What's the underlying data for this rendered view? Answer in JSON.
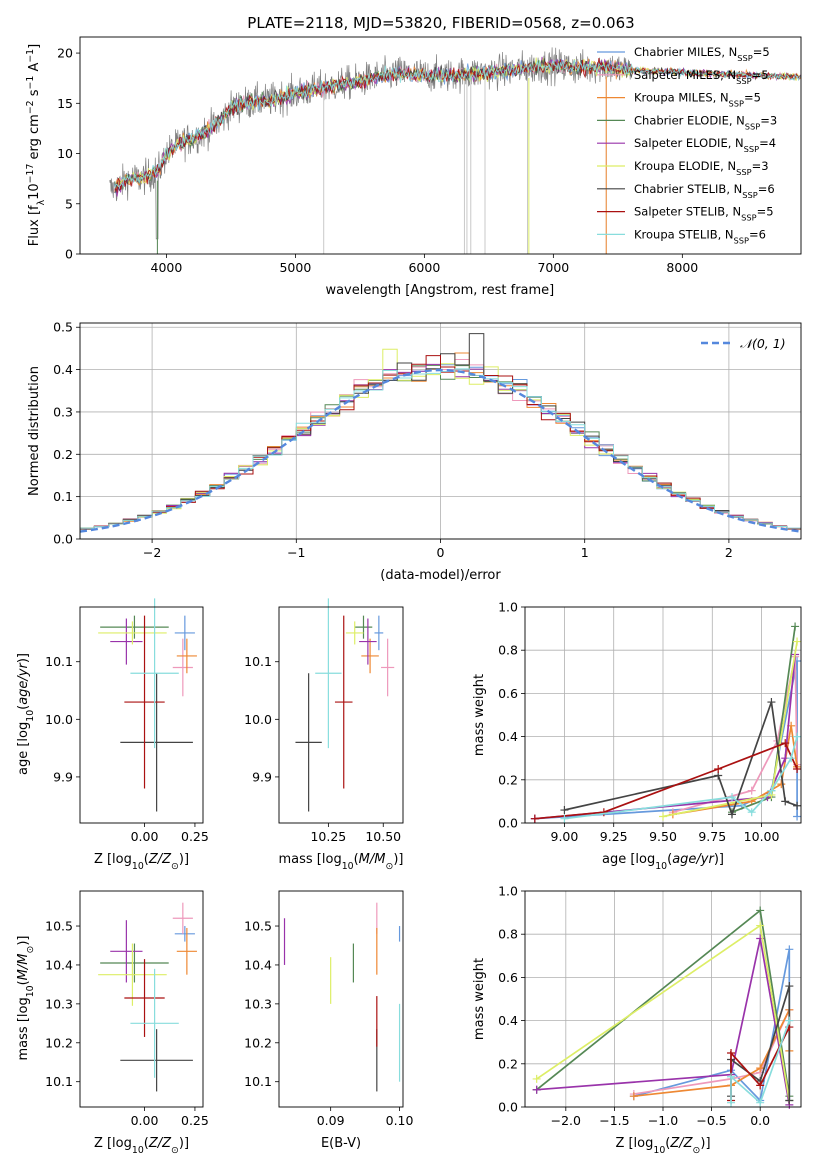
{
  "figure": {
    "title": "PLATE=2118, MJD=53820, FIBERID=0568, z=0.063"
  },
  "colors": {
    "data": "#7f7f7f",
    "normal": "#5588dd",
    "grid": "#b0b0b0"
  },
  "chart_data": [
    {
      "id": "spectrum",
      "type": "line",
      "title": "PLATE=2118, MJD=53820, FIBERID=0568, z=0.063",
      "xlabel": "wavelength [Angstrom, rest frame]",
      "ylabel": "Flux [fλ10⁻¹⁷ erg cm⁻² s⁻¹ A⁻¹]",
      "xlim": [
        3330,
        8920
      ],
      "ylim": [
        0,
        21.6
      ],
      "xticks": [
        4000,
        5000,
        6000,
        7000,
        8000
      ],
      "yticks": [
        0,
        5,
        10,
        15,
        20
      ],
      "grid": false,
      "legend_position": "right",
      "continuum": {
        "x": [
          3600,
          3700,
          3800,
          3900,
          3950,
          4000,
          4100,
          4200,
          4300,
          4400,
          4500,
          4600,
          4800,
          5000,
          5200,
          5400,
          5600,
          5800,
          6000,
          6200,
          6400,
          6600,
          6800,
          7000,
          7200,
          7400,
          7500,
          7600
        ],
        "y": [
          6.5,
          7.5,
          7.5,
          8.0,
          8.5,
          10.0,
          11.0,
          11.5,
          12.2,
          13.0,
          14.5,
          15.0,
          15.3,
          16.0,
          16.5,
          17.0,
          17.5,
          18.0,
          17.8,
          17.8,
          18.0,
          18.2,
          18.5,
          18.8,
          18.5,
          18.7,
          18.4,
          18.3
        ]
      },
      "observed_extent": [
        3560,
        7600
      ],
      "model_extent": [
        3600,
        8920
      ],
      "line_tail": {
        "x": [
          7600,
          8920
        ],
        "y": [
          18.3,
          17.6
        ]
      },
      "series": [
        {
          "name": "Chabrier MILES, N_SSP=5",
          "color": "#6699dd"
        },
        {
          "name": "Salpeter MILES, N_SSP=5",
          "color": "#ee99bb"
        },
        {
          "name": "Kroupa MILES, N_SSP=5",
          "color": "#ee8833"
        },
        {
          "name": "Chabrier ELODIE, N_SSP=3",
          "color": "#558855"
        },
        {
          "name": "Salpeter ELODIE, N_SSP=4",
          "color": "#9933aa"
        },
        {
          "name": "Kroupa ELODIE, N_SSP=3",
          "color": "#ddee66"
        },
        {
          "name": "Chabrier STELIB, N_SSP=6",
          "color": "#444444"
        },
        {
          "name": "Salpeter STELIB, N_SSP=5",
          "color": "#aa1111"
        },
        {
          "name": "Kroupa STELIB, N_SSP=6",
          "color": "#88dddd"
        }
      ]
    },
    {
      "id": "residuals",
      "type": "histogram",
      "xlabel": "(data-model)/error",
      "ylabel": "Normed distribution",
      "xlim": [
        -2.5,
        2.5
      ],
      "ylim": [
        0,
        0.51
      ],
      "xticks": [
        -2,
        -1,
        0,
        1,
        2
      ],
      "xtick_labels": [
        "−2",
        "−1",
        "0",
        "1",
        "2"
      ],
      "yticks": [
        0.0,
        0.1,
        0.2,
        0.3,
        0.4,
        0.5
      ],
      "ytick_labels": [
        "0.0",
        "0.1",
        "0.2",
        "0.3",
        "0.4",
        "0.5"
      ],
      "grid": true,
      "legend_label": "𝒩(0, 1)",
      "legend_position": "upper right",
      "bin_width": 0.1
    },
    {
      "id": "age-vs-Z",
      "type": "scatter",
      "xlabel": "Z [log10(Z/Z⊙)]",
      "ylabel": "age  [log10(age/yr)]",
      "xlim": [
        -0.32,
        0.29
      ],
      "ylim": [
        9.82,
        10.195
      ],
      "xticks": [
        0.0,
        0.25
      ],
      "xtick_labels": [
        "0.00",
        "0.25"
      ],
      "yticks": [
        9.9,
        10.0,
        10.1
      ],
      "ytick_labels": [
        "9.9",
        "10.0",
        "10.1"
      ],
      "points": [
        {
          "x": 0.2,
          "y": 10.15,
          "xerr": 0.05,
          "yerr": 0.03,
          "color": "#6699dd"
        },
        {
          "x": 0.19,
          "y": 10.09,
          "xerr": 0.05,
          "yerr": 0.05,
          "color": "#ee99bb"
        },
        {
          "x": 0.21,
          "y": 10.11,
          "xerr": 0.05,
          "yerr": 0.03,
          "color": "#ee8833"
        },
        {
          "x": -0.05,
          "y": 10.16,
          "xerr": 0.17,
          "yerr": 0.02,
          "color": "#558855"
        },
        {
          "x": -0.09,
          "y": 10.135,
          "xerr": 0.08,
          "yerr": 0.04,
          "color": "#9933aa"
        },
        {
          "x": -0.06,
          "y": 10.15,
          "xerr": 0.17,
          "yerr": 0.02,
          "color": "#ddee66"
        },
        {
          "x": 0.06,
          "y": 9.96,
          "xerr": 0.18,
          "yerr": 0.12,
          "color": "#444444"
        },
        {
          "x": 0.0,
          "y": 10.03,
          "xerr": 0.1,
          "yerr": 0.15,
          "color": "#aa1111"
        },
        {
          "x": 0.05,
          "y": 10.08,
          "xerr": 0.12,
          "yerr": 0.13,
          "color": "#88dddd"
        }
      ]
    },
    {
      "id": "age-vs-mass",
      "type": "scatter",
      "xlabel": "mass [log10(M/M⊙)]",
      "ylabel": "",
      "xlim": [
        10.025,
        10.59
      ],
      "ylim": [
        9.82,
        10.195
      ],
      "xticks": [
        10.25,
        10.5
      ],
      "xtick_labels": [
        "10.25",
        "10.50"
      ],
      "yticks": [
        9.9,
        10.0,
        10.1
      ],
      "ytick_labels": [
        "9.9",
        "10.0",
        "10.1"
      ],
      "points": [
        {
          "x": 10.48,
          "y": 10.15,
          "xerr": 0.02,
          "yerr": 0.03,
          "color": "#6699dd"
        },
        {
          "x": 10.52,
          "y": 10.09,
          "xerr": 0.03,
          "yerr": 0.05,
          "color": "#ee99bb"
        },
        {
          "x": 10.44,
          "y": 10.11,
          "xerr": 0.04,
          "yerr": 0.03,
          "color": "#ee8833"
        },
        {
          "x": 10.41,
          "y": 10.16,
          "xerr": 0.04,
          "yerr": 0.02,
          "color": "#558855"
        },
        {
          "x": 10.43,
          "y": 10.135,
          "xerr": 0.04,
          "yerr": 0.04,
          "color": "#9933aa"
        },
        {
          "x": 10.37,
          "y": 10.15,
          "xerr": 0.04,
          "yerr": 0.02,
          "color": "#ddee66"
        },
        {
          "x": 10.16,
          "y": 9.96,
          "xerr": 0.06,
          "yerr": 0.12,
          "color": "#444444"
        },
        {
          "x": 10.32,
          "y": 10.03,
          "xerr": 0.04,
          "yerr": 0.15,
          "color": "#aa1111"
        },
        {
          "x": 10.25,
          "y": 10.08,
          "xerr": 0.06,
          "yerr": 0.13,
          "color": "#88dddd"
        }
      ]
    },
    {
      "id": "mass-vs-Z",
      "type": "scatter",
      "xlabel": "Z [log10(Z/Z⊙)]",
      "ylabel": "mass [log10(M/M⊙)]",
      "xlim": [
        -0.32,
        0.29
      ],
      "ylim": [
        10.035,
        10.59
      ],
      "xticks": [
        0.0,
        0.25
      ],
      "xtick_labels": [
        "0.00",
        "0.25"
      ],
      "yticks": [
        10.1,
        10.2,
        10.3,
        10.4,
        10.5
      ],
      "ytick_labels": [
        "10.1",
        "10.2",
        "10.3",
        "10.4",
        "10.5"
      ],
      "points": [
        {
          "x": 0.2,
          "y": 10.48,
          "xerr": 0.05,
          "yerr": 0.02,
          "color": "#6699dd"
        },
        {
          "x": 0.19,
          "y": 10.52,
          "xerr": 0.05,
          "yerr": 0.04,
          "color": "#ee99bb"
        },
        {
          "x": 0.21,
          "y": 10.435,
          "xerr": 0.05,
          "yerr": 0.06,
          "color": "#ee8833"
        },
        {
          "x": -0.05,
          "y": 10.405,
          "xerr": 0.17,
          "yerr": 0.05,
          "color": "#558855"
        },
        {
          "x": -0.09,
          "y": 10.435,
          "xerr": 0.08,
          "yerr": 0.08,
          "color": "#9933aa"
        },
        {
          "x": -0.06,
          "y": 10.375,
          "xerr": 0.17,
          "yerr": 0.08,
          "color": "#ddee66"
        },
        {
          "x": 0.06,
          "y": 10.155,
          "xerr": 0.18,
          "yerr": 0.08,
          "color": "#444444"
        },
        {
          "x": 0.0,
          "y": 10.315,
          "xerr": 0.1,
          "yerr": 0.1,
          "color": "#aa1111"
        },
        {
          "x": 0.05,
          "y": 10.25,
          "xerr": 0.12,
          "yerr": 0.14,
          "color": "#88dddd"
        }
      ]
    },
    {
      "id": "mass-vs-EBV",
      "type": "scatter",
      "xlabel": "E(B-V)",
      "ylabel": "",
      "xlim": [
        0.0825,
        0.1005
      ],
      "ylim": [
        10.035,
        10.59
      ],
      "xticks": [
        0.09,
        0.1
      ],
      "xtick_labels": [
        "0.09",
        "0.10"
      ],
      "yticks": [
        10.1,
        10.2,
        10.3,
        10.4,
        10.5
      ],
      "ytick_labels": [
        "10.1",
        "10.2",
        "10.3",
        "10.4",
        "10.5"
      ],
      "points": [
        {
          "x": 0.1,
          "y": 10.48,
          "xerr": 0,
          "yerr": 0.02,
          "color": "#6699dd"
        },
        {
          "x": 0.0967,
          "y": 10.52,
          "xerr": 0,
          "yerr": 0.04,
          "color": "#ee99bb"
        },
        {
          "x": 0.0967,
          "y": 10.435,
          "xerr": 0,
          "yerr": 0.06,
          "color": "#ee8833"
        },
        {
          "x": 0.0933,
          "y": 10.405,
          "xerr": 0,
          "yerr": 0.05,
          "color": "#558855"
        },
        {
          "x": 0.0833,
          "y": 10.46,
          "xerr": 0,
          "yerr": 0.06,
          "color": "#9933aa"
        },
        {
          "x": 0.09,
          "y": 10.36,
          "xerr": 0,
          "yerr": 0.06,
          "color": "#ddee66"
        },
        {
          "x": 0.0967,
          "y": 10.155,
          "xerr": 0,
          "yerr": 0.08,
          "color": "#444444"
        },
        {
          "x": 0.0967,
          "y": 10.255,
          "xerr": 0,
          "yerr": 0.065,
          "color": "#aa1111"
        },
        {
          "x": 0.1,
          "y": 10.2,
          "xerr": 0,
          "yerr": 0.1,
          "color": "#88dddd"
        }
      ]
    },
    {
      "id": "mass-weight-vs-age",
      "type": "line",
      "xlabel": "age  [log10(age/yr)]",
      "ylabel": "mass weight",
      "xlim": [
        8.8,
        10.2
      ],
      "ylim": [
        0,
        1
      ],
      "xticks": [
        9.0,
        9.25,
        9.5,
        9.75,
        10.0
      ],
      "xtick_labels": [
        "9.00",
        "9.25",
        "9.50",
        "9.75",
        "10.00"
      ],
      "yticks": [
        0.0,
        0.2,
        0.4,
        0.6,
        0.8,
        1.0
      ],
      "ytick_labels": [
        "0.0",
        "0.2",
        "0.4",
        "0.6",
        "0.8",
        "1.0"
      ],
      "grid": true,
      "series": [
        {
          "name": "Chabrier MILES, N_SSP=5",
          "color": "#6699dd",
          "x": [
            8.85,
            9.9,
            10.05,
            10.18,
            10.18
          ],
          "y": [
            0.02,
            0.08,
            0.15,
            0.75,
            0.03
          ]
        },
        {
          "name": "Salpeter MILES, N_SSP=5",
          "color": "#ee99bb",
          "x": [
            9.55,
            9.95,
            10.08,
            10.17,
            10.18
          ],
          "y": [
            0.05,
            0.15,
            0.38,
            0.77,
            0.27
          ]
        },
        {
          "name": "Kroupa MILES, N_SSP=5",
          "color": "#ee8833",
          "x": [
            9.55,
            9.95,
            10.1,
            10.15,
            10.18
          ],
          "y": [
            0.04,
            0.1,
            0.18,
            0.45,
            0.26
          ]
        },
        {
          "name": "Chabrier ELODIE, N_SSP=3",
          "color": "#558855",
          "x": [
            9.85,
            10.05,
            10.17
          ],
          "y": [
            0.05,
            0.12,
            0.91
          ]
        },
        {
          "name": "Salpeter ELODIE, N_SSP=4",
          "color": "#9933aa",
          "x": [
            8.85,
            10.03,
            10.12,
            10.17
          ],
          "y": [
            0.02,
            0.12,
            0.3,
            0.78
          ]
        },
        {
          "name": "Kroupa ELODIE, N_SSP=3",
          "color": "#ddee66",
          "x": [
            9.5,
            10.05,
            10.18
          ],
          "y": [
            0.03,
            0.13,
            0.84
          ]
        },
        {
          "name": "Chabrier STELIB, N_SSP=6",
          "color": "#444444",
          "x": [
            9.0,
            9.78,
            9.85,
            10.05,
            10.12,
            10.18
          ],
          "y": [
            0.06,
            0.22,
            0.04,
            0.56,
            0.1,
            0.08
          ]
        },
        {
          "name": "Salpeter STELIB, N_SSP=5",
          "color": "#aa1111",
          "x": [
            8.85,
            9.2,
            9.78,
            10.12,
            10.18
          ],
          "y": [
            0.02,
            0.05,
            0.25,
            0.37,
            0.25
          ]
        },
        {
          "name": "Kroupa STELIB, N_SSP=6",
          "color": "#88dddd",
          "x": [
            9.0,
            9.85,
            9.95,
            10.05,
            10.15,
            10.18
          ],
          "y": [
            0.02,
            0.12,
            0.05,
            0.15,
            0.3,
            0.4
          ]
        }
      ]
    },
    {
      "id": "mass-weight-vs-Z",
      "type": "line",
      "xlabel": "Z [log10(Z/Z⊙)]",
      "ylabel": "mass weight",
      "xlim": [
        -2.42,
        0.42
      ],
      "ylim": [
        0,
        1
      ],
      "xticks": [
        -2.0,
        -1.5,
        -1.0,
        -0.5,
        0.0
      ],
      "xtick_labels": [
        "−2.0",
        "−1.5",
        "−1.0",
        "−0.5",
        "0.0"
      ],
      "yticks": [
        0.0,
        0.2,
        0.4,
        0.6,
        0.8,
        1.0
      ],
      "ytick_labels": [
        "0.0",
        "0.2",
        "0.4",
        "0.6",
        "0.8",
        "1.0"
      ],
      "grid": true,
      "series": [
        {
          "name": "Chabrier MILES, N_SSP=5",
          "color": "#6699dd",
          "x": [
            -1.3,
            -0.3,
            0.0,
            0.3,
            0.3
          ],
          "y": [
            0.05,
            0.17,
            0.03,
            0.73,
            0.03
          ]
        },
        {
          "name": "Salpeter MILES, N_SSP=5",
          "color": "#ee99bb",
          "x": [
            -1.3,
            -0.3,
            0.0,
            0.3
          ],
          "y": [
            0.06,
            0.13,
            0.16,
            0.45
          ]
        },
        {
          "name": "Kroupa MILES, N_SSP=5",
          "color": "#ee8833",
          "x": [
            -1.3,
            -0.3,
            0.0,
            0.3,
            0.3
          ],
          "y": [
            0.05,
            0.1,
            0.18,
            0.45,
            0.26
          ]
        },
        {
          "name": "Chabrier ELODIE, N_SSP=3",
          "color": "#558855",
          "x": [
            -2.3,
            0.0,
            0.3
          ],
          "y": [
            0.08,
            0.91,
            0.05
          ]
        },
        {
          "name": "Salpeter ELODIE, N_SSP=4",
          "color": "#9933aa",
          "x": [
            -2.3,
            -0.3,
            0.0,
            0.3
          ],
          "y": [
            0.08,
            0.15,
            0.78,
            0.01
          ]
        },
        {
          "name": "Kroupa ELODIE, N_SSP=3",
          "color": "#ddee66",
          "x": [
            -2.3,
            0.0,
            0.3
          ],
          "y": [
            0.13,
            0.84,
            0.03
          ]
        },
        {
          "name": "Chabrier STELIB, N_SSP=6",
          "color": "#444444",
          "x": [
            -0.3,
            -0.3,
            0.0,
            0.3,
            0.3
          ],
          "y": [
            0.05,
            0.22,
            0.12,
            0.56,
            0.03
          ]
        },
        {
          "name": "Salpeter STELIB, N_SSP=5",
          "color": "#aa1111",
          "x": [
            -0.3,
            -0.3,
            0.0,
            0.3
          ],
          "y": [
            0.03,
            0.25,
            0.1,
            0.37
          ]
        },
        {
          "name": "Kroupa STELIB, N_SSP=6",
          "color": "#88dddd",
          "x": [
            -0.3,
            -0.3,
            0.0,
            0.3
          ],
          "y": [
            0.02,
            0.14,
            0.02,
            0.4
          ]
        }
      ]
    }
  ]
}
